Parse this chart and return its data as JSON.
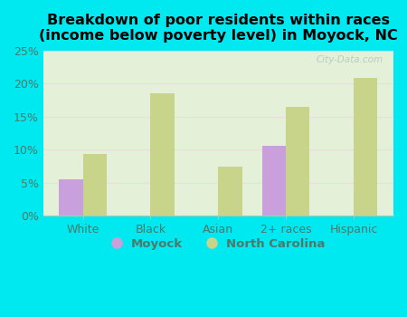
{
  "title": "Breakdown of poor residents within races\n(income below poverty level) in Moyock, NC",
  "categories": [
    "White",
    "Black",
    "Asian",
    "2+ races",
    "Hispanic"
  ],
  "moyock_values": [
    5.5,
    0,
    0,
    10.5,
    0
  ],
  "nc_values": [
    9.3,
    18.5,
    7.4,
    16.5,
    20.8
  ],
  "moyock_color": "#c9a0dc",
  "nc_color": "#c8d48a",
  "background_outer": "#00e8f0",
  "background_inner": "#e4f0d8",
  "ylim": [
    0,
    25
  ],
  "yticks": [
    0,
    5,
    10,
    15,
    20,
    25
  ],
  "ytick_labels": [
    "0%",
    "5%",
    "10%",
    "15%",
    "20%",
    "25%"
  ],
  "tick_label_color": "#4a7a6a",
  "legend_moyock": "Moyock",
  "legend_nc": "North Carolina",
  "bar_width": 0.35,
  "title_fontsize": 11.5,
  "watermark": "City-Data.com",
  "grid_color": "#d8eed0",
  "spine_color": "#aaccaa"
}
